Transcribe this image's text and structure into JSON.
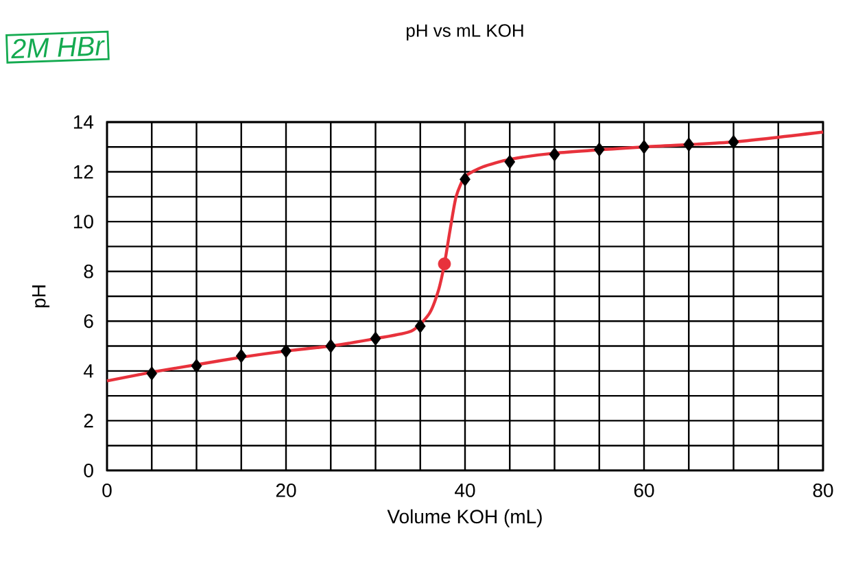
{
  "chart_data": {
    "type": "scatter",
    "title": "pH vs mL KOH",
    "xlabel": "Volume KOH (mL)",
    "ylabel": "pH",
    "annotations": [
      "2M HBr"
    ],
    "xlim": [
      0,
      80
    ],
    "xticks": [
      0,
      20,
      40,
      60,
      80
    ],
    "ylim": [
      0,
      14
    ],
    "yticks": [
      0,
      2,
      4,
      6,
      8,
      10,
      12,
      14
    ],
    "grid": true,
    "series": [
      {
        "type": "line",
        "color": "#e8323c",
        "marker": "none",
        "line_style": "solid",
        "x": [
          0,
          5,
          10,
          15,
          20,
          25,
          30,
          34,
          36,
          37,
          37.7,
          38.3,
          39,
          40,
          42,
          45,
          50,
          60,
          70,
          80
        ],
        "values": [
          3.6,
          3.95,
          4.25,
          4.55,
          4.8,
          5.0,
          5.3,
          5.6,
          6.3,
          7.2,
          8.3,
          9.6,
          11,
          11.8,
          12.2,
          12.5,
          12.75,
          13.0,
          13.2,
          13.6
        ]
      },
      {
        "color": "#000000",
        "marker": "diamond",
        "x": [
          5,
          10,
          15,
          20,
          25,
          30,
          35,
          40,
          45,
          50,
          55,
          60,
          65,
          70
        ],
        "values": [
          3.9,
          4.2,
          4.6,
          4.8,
          5.0,
          5.3,
          5.8,
          11.7,
          12.4,
          12.7,
          12.9,
          13.0,
          13.1,
          13.2
        ]
      },
      {
        "color": "#e8323c",
        "marker": "circle",
        "x": [
          37.7
        ],
        "values": [
          8.3
        ]
      }
    ]
  }
}
